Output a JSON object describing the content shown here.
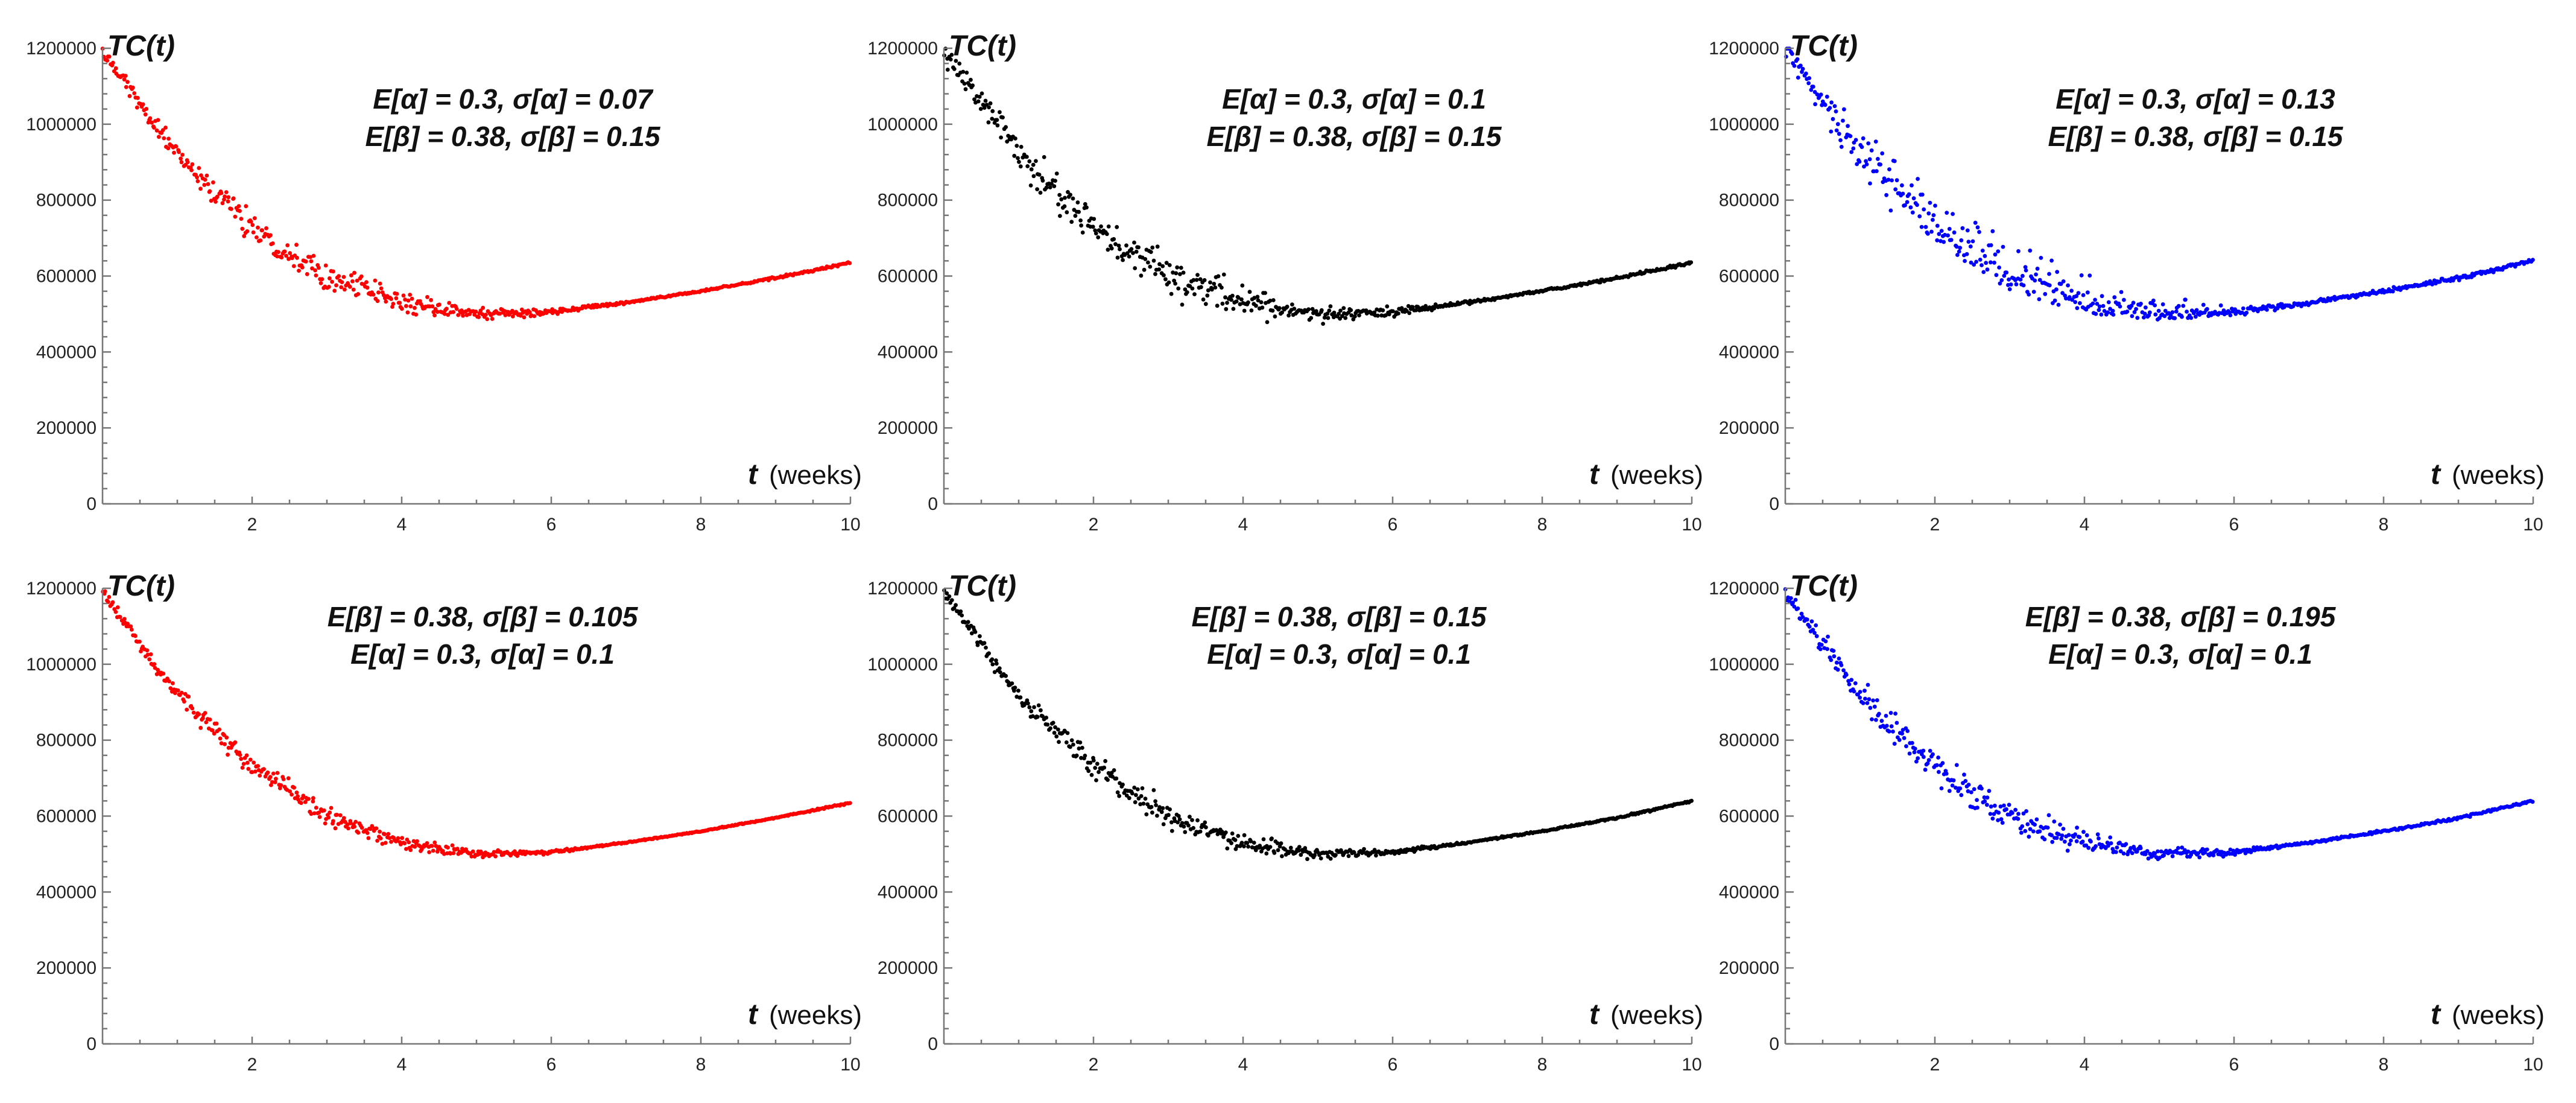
{
  "chart_data": [
    {
      "type": "scatter",
      "panel": "top-left",
      "color": "#ff0000",
      "noise": 0.07,
      "ylabel": "TC(t)",
      "xlabel": "t",
      "xlabel_unit": "(weeks)",
      "annotation": [
        "E[α] = 0.3, σ[α] = 0.07",
        "E[β] = 0.38, σ[β] = 0.15"
      ],
      "xlim": [
        0,
        10
      ],
      "ylim": [
        0,
        1200000
      ],
      "xticks": [
        "2",
        "4",
        "6",
        "8",
        "10"
      ],
      "yticks": [
        "0",
        "200000",
        "400000",
        "600000",
        "800000",
        "1000000",
        "1200000"
      ],
      "trend": {
        "x": [
          0,
          1,
          2,
          3,
          4,
          5,
          6,
          7,
          8,
          9,
          10
        ],
        "y": [
          1190000,
          920000,
          730000,
          600000,
          530000,
          500000,
          505000,
          530000,
          560000,
          595000,
          635000
        ]
      },
      "n_points": 600
    },
    {
      "type": "scatter",
      "panel": "top-middle",
      "color": "#000000",
      "noise": 0.1,
      "ylabel": "TC(t)",
      "xlabel": "t",
      "xlabel_unit": "(weeks)",
      "annotation": [
        "E[α] = 0.3, σ[α] = 0.1",
        "E[β] = 0.38, σ[β] = 0.15"
      ],
      "xlim": [
        0,
        10
      ],
      "ylim": [
        0,
        1200000
      ],
      "xticks": [
        "2",
        "4",
        "6",
        "8",
        "10"
      ],
      "yticks": [
        "0",
        "200000",
        "400000",
        "600000",
        "800000",
        "1000000",
        "1200000"
      ],
      "trend": {
        "x": [
          0,
          1,
          2,
          3,
          4,
          5,
          6,
          7,
          8,
          9,
          10
        ],
        "y": [
          1190000,
          920000,
          730000,
          600000,
          530000,
          500000,
          505000,
          530000,
          560000,
          595000,
          635000
        ]
      },
      "n_points": 600
    },
    {
      "type": "scatter",
      "panel": "top-right",
      "color": "#0000ff",
      "noise": 0.13,
      "ylabel": "TC(t)",
      "xlabel": "t",
      "xlabel_unit": "(weeks)",
      "annotation": [
        "E[α] = 0.3, σ[α] = 0.13",
        "E[β] = 0.38, σ[β] = 0.15"
      ],
      "xlim": [
        0,
        10
      ],
      "ylim": [
        0,
        1200000
      ],
      "xticks": [
        "2",
        "4",
        "6",
        "8",
        "10"
      ],
      "yticks": [
        "0",
        "200000",
        "400000",
        "600000",
        "800000",
        "1000000",
        "1200000"
      ],
      "trend": {
        "x": [
          0,
          1,
          2,
          3,
          4,
          5,
          6,
          7,
          8,
          9,
          10
        ],
        "y": [
          1190000,
          920000,
          730000,
          600000,
          530000,
          500000,
          505000,
          530000,
          560000,
          595000,
          640000
        ]
      },
      "n_points": 600
    },
    {
      "type": "scatter",
      "panel": "bottom-left",
      "color": "#ff0000",
      "noise": 0.045,
      "ylabel": "TC(t)",
      "xlabel": "t",
      "xlabel_unit": "(weeks)",
      "annotation": [
        "E[β] = 0.38, σ[β] = 0.105",
        "E[α] = 0.3, σ[α] = 0.1"
      ],
      "xlim": [
        0,
        10
      ],
      "ylim": [
        0,
        1200000
      ],
      "xticks": [
        "2",
        "4",
        "6",
        "8",
        "10"
      ],
      "yticks": [
        "0",
        "200000",
        "400000",
        "600000",
        "800000",
        "1000000",
        "1200000"
      ],
      "trend": {
        "x": [
          0,
          1,
          2,
          3,
          4,
          5,
          6,
          7,
          8,
          9,
          10
        ],
        "y": [
          1190000,
          920000,
          730000,
          600000,
          530000,
          500000,
          505000,
          530000,
          560000,
          595000,
          635000
        ]
      },
      "n_points": 600
    },
    {
      "type": "scatter",
      "panel": "bottom-middle",
      "color": "#000000",
      "noise": 0.06,
      "ylabel": "TC(t)",
      "xlabel": "t",
      "xlabel_unit": "(weeks)",
      "annotation": [
        "E[β] = 0.38, σ[β] = 0.15",
        "E[α] = 0.3, σ[α] = 0.1"
      ],
      "xlim": [
        0,
        10
      ],
      "ylim": [
        0,
        1200000
      ],
      "xticks": [
        "2",
        "4",
        "6",
        "8",
        "10"
      ],
      "yticks": [
        "0",
        "200000",
        "400000",
        "600000",
        "800000",
        "1000000",
        "1200000"
      ],
      "trend": {
        "x": [
          0,
          1,
          2,
          3,
          4,
          5,
          6,
          7,
          8,
          9,
          10
        ],
        "y": [
          1190000,
          920000,
          730000,
          600000,
          530000,
          500000,
          505000,
          530000,
          560000,
          595000,
          640000
        ]
      },
      "n_points": 600
    },
    {
      "type": "scatter",
      "panel": "bottom-right",
      "color": "#0000ff",
      "noise": 0.075,
      "ylabel": "TC(t)",
      "xlabel": "t",
      "xlabel_unit": "(weeks)",
      "annotation": [
        "E[β] = 0.38, σ[β] = 0.195",
        "E[α] = 0.3, σ[α] = 0.1"
      ],
      "xlim": [
        0,
        10
      ],
      "ylim": [
        0,
        1200000
      ],
      "xticks": [
        "2",
        "4",
        "6",
        "8",
        "10"
      ],
      "yticks": [
        "0",
        "200000",
        "400000",
        "600000",
        "800000",
        "1000000",
        "1200000"
      ],
      "trend": {
        "x": [
          0,
          1,
          2,
          3,
          4,
          5,
          6,
          7,
          8,
          9,
          10
        ],
        "y": [
          1190000,
          920000,
          730000,
          600000,
          530000,
          500000,
          505000,
          530000,
          560000,
          595000,
          640000
        ]
      },
      "n_points": 600
    }
  ]
}
